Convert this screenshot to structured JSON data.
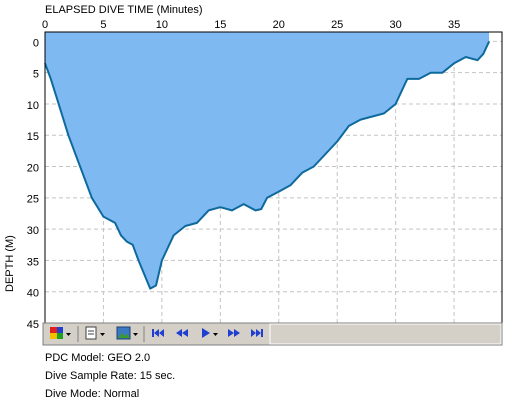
{
  "chart_data": {
    "type": "area",
    "title": "ELAPSED DIVE TIME (Minutes)",
    "y_label": "DEPTH (M)",
    "x": [
      0,
      0.5,
      1,
      2,
      3,
      4,
      5,
      6,
      6.5,
      7,
      7.5,
      8,
      9,
      9.5,
      10,
      11,
      12,
      13,
      14,
      15,
      16,
      17,
      18,
      18.5,
      19,
      20,
      21,
      22,
      23,
      24,
      25,
      26,
      27,
      28,
      29,
      30,
      31,
      32,
      33,
      34,
      35,
      36,
      37,
      37.5,
      38
    ],
    "values": [
      3.5,
      6,
      9,
      15,
      20,
      25,
      28,
      29,
      31,
      32,
      32.5,
      35,
      39.5,
      39,
      35,
      31,
      29.5,
      29,
      27,
      26.5,
      27,
      26,
      27,
      26.8,
      25,
      24,
      23,
      21,
      20,
      18,
      16,
      13.5,
      12.5,
      12,
      11.5,
      10,
      6,
      6,
      5,
      5,
      3.5,
      2.5,
      3,
      2,
      0
    ],
    "line_color": "#0e6a9c",
    "fill_color": "#7fb9f2",
    "xlim": [
      0,
      39.1
    ],
    "xticks": [
      0,
      5,
      10,
      15,
      20,
      25,
      30,
      35
    ],
    "ylim": [
      -1.5,
      45
    ],
    "yticks": [
      0,
      5,
      10,
      15,
      20,
      25,
      30,
      35,
      40,
      45
    ],
    "y_inverted": true,
    "grid": true
  },
  "dive_info": [
    "PDC Model: GEO 2.0",
    "Dive Sample Rate: 15 sec.",
    "Dive Mode: Normal"
  ]
}
